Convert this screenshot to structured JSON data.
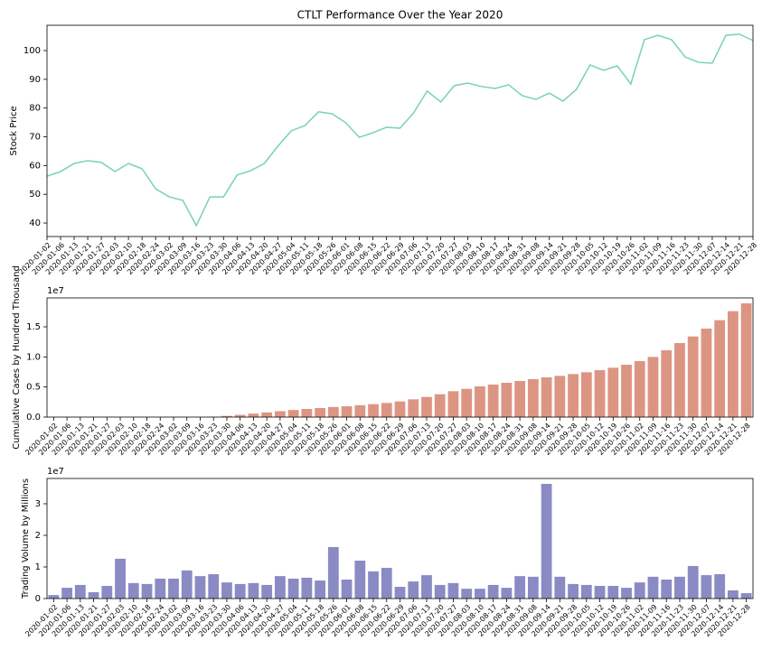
{
  "chart_data": [
    {
      "type": "line",
      "title": "CTLT Performance Over the Year 2020",
      "y_label": "Stock Price",
      "categories": [
        "2020-01-02",
        "2020-01-06",
        "2020-01-13",
        "2020-01-21",
        "2020-01-27",
        "2020-02-03",
        "2020-02-10",
        "2020-02-18",
        "2020-02-24",
        "2020-03-02",
        "2020-03-09",
        "2020-03-16",
        "2020-03-23",
        "2020-03-30",
        "2020-04-06",
        "2020-04-13",
        "2020-04-20",
        "2020-04-27",
        "2020-05-04",
        "2020-05-11",
        "2020-05-18",
        "2020-05-26",
        "2020-06-01",
        "2020-06-08",
        "2020-06-15",
        "2020-06-22",
        "2020-06-29",
        "2020-07-06",
        "2020-07-13",
        "2020-07-20",
        "2020-07-27",
        "2020-08-03",
        "2020-08-10",
        "2020-08-17",
        "2020-08-24",
        "2020-08-31",
        "2020-09-08",
        "2020-09-14",
        "2020-09-21",
        "2020-09-28",
        "2020-10-05",
        "2020-10-12",
        "2020-10-19",
        "2020-10-26",
        "2020-11-02",
        "2020-11-09",
        "2020-11-16",
        "2020-11-23",
        "2020-11-30",
        "2020-12-07",
        "2020-12-14",
        "2020-12-21",
        "2020-12-28"
      ],
      "values": [
        56.3,
        57.9,
        60.7,
        61.7,
        61.1,
        57.9,
        60.7,
        58.9,
        51.9,
        49.1,
        47.9,
        39.1,
        49.1,
        49.1,
        56.7,
        58.2,
        60.7,
        66.7,
        72.1,
        73.9,
        78.7,
        78,
        74.9,
        69.8,
        71.4,
        73.3,
        73,
        78.3,
        85.9,
        82.1,
        87.8,
        88.7,
        87.5,
        86.8,
        88.1,
        84.3,
        83,
        85.2,
        82.4,
        86.5,
        95,
        93.1,
        94.7,
        88.4,
        103.8,
        105.3,
        103.8,
        97.8,
        95.9,
        95.6,
        105.3,
        105.7,
        103.5
      ],
      "color": "#78d2b4",
      "ylim": [
        35.3,
        108.8
      ],
      "yticks": [
        40,
        50,
        60,
        70,
        80,
        90,
        100
      ]
    },
    {
      "type": "bar",
      "y_label": "Cumulative Cases by Hundred Thousand",
      "y_offset_label": "1e7",
      "categories": [
        "2020-01-02",
        "2020-01-06",
        "2020-01-13",
        "2020-01-21",
        "2020-01-27",
        "2020-02-03",
        "2020-02-10",
        "2020-02-18",
        "2020-02-24",
        "2020-03-02",
        "2020-03-09",
        "2020-03-16",
        "2020-03-23",
        "2020-03-30",
        "2020-04-06",
        "2020-04-13",
        "2020-04-20",
        "2020-04-27",
        "2020-05-04",
        "2020-05-11",
        "2020-05-18",
        "2020-05-26",
        "2020-06-01",
        "2020-06-08",
        "2020-06-15",
        "2020-06-22",
        "2020-06-29",
        "2020-07-06",
        "2020-07-13",
        "2020-07-20",
        "2020-07-27",
        "2020-08-03",
        "2020-08-10",
        "2020-08-17",
        "2020-08-24",
        "2020-08-31",
        "2020-09-08",
        "2020-09-14",
        "2020-09-21",
        "2020-09-28",
        "2020-10-05",
        "2020-10-12",
        "2020-10-19",
        "2020-10-26",
        "2020-11-02",
        "2020-11-09",
        "2020-11-16",
        "2020-11-23",
        "2020-11-30",
        "2020-12-07",
        "2020-12-14",
        "2020-12-21",
        "2020-12-28"
      ],
      "values": [
        0,
        0,
        0,
        0,
        0,
        0,
        0,
        0,
        0,
        100,
        500,
        3500,
        44000,
        200000,
        370000,
        580000,
        780000,
        980000,
        1180000,
        1350000,
        1500000,
        1680000,
        1800000,
        1970000,
        2150000,
        2350000,
        2600000,
        2950000,
        3350000,
        3800000,
        4300000,
        4700000,
        5100000,
        5400000,
        5700000,
        6000000,
        6300000,
        6600000,
        6850000,
        7150000,
        7450000,
        7800000,
        8200000,
        8700000,
        9300000,
        10000000,
        11100000,
        12300000,
        13400000,
        14700000,
        16100000,
        17600000,
        18900000
      ],
      "color": "#dd9583",
      "ylim": [
        0,
        19800000
      ],
      "yticks": [
        {
          "value": 0,
          "label": "0.0"
        },
        {
          "value": 5000000,
          "label": "0.5"
        },
        {
          "value": 10000000,
          "label": "1.0"
        },
        {
          "value": 15000000,
          "label": "1.5"
        }
      ]
    },
    {
      "type": "bar",
      "y_label": "Trading Volume by Millions",
      "y_offset_label": "1e7",
      "categories": [
        "2020-01-02",
        "2020-01-06",
        "2020-01-13",
        "2020-01-21",
        "2020-01-27",
        "2020-02-03",
        "2020-02-10",
        "2020-02-18",
        "2020-02-24",
        "2020-03-02",
        "2020-03-09",
        "2020-03-16",
        "2020-03-23",
        "2020-03-30",
        "2020-04-06",
        "2020-04-13",
        "2020-04-20",
        "2020-04-27",
        "2020-05-04",
        "2020-05-11",
        "2020-05-18",
        "2020-05-26",
        "2020-06-01",
        "2020-06-08",
        "2020-06-15",
        "2020-06-22",
        "2020-06-29",
        "2020-07-06",
        "2020-07-13",
        "2020-07-20",
        "2020-07-27",
        "2020-08-03",
        "2020-08-10",
        "2020-08-17",
        "2020-08-24",
        "2020-08-31",
        "2020-09-08",
        "2020-09-14",
        "2020-09-21",
        "2020-09-28",
        "2020-10-05",
        "2020-10-12",
        "2020-10-19",
        "2020-10-26",
        "2020-11-02",
        "2020-11-09",
        "2020-11-16",
        "2020-11-23",
        "2020-11-30",
        "2020-12-07",
        "2020-12-14",
        "2020-12-21",
        "2020-12-28"
      ],
      "values": [
        1100000,
        3400000,
        4300000,
        2000000,
        4000000,
        12600000,
        4900000,
        4600000,
        6300000,
        6300000,
        8900000,
        7100000,
        7700000,
        5100000,
        4600000,
        4900000,
        4300000,
        7100000,
        6300000,
        6600000,
        5700000,
        16300000,
        6000000,
        12000000,
        8600000,
        9700000,
        3700000,
        5400000,
        7400000,
        4300000,
        4900000,
        3100000,
        3100000,
        4300000,
        3400000,
        7100000,
        6900000,
        36300000,
        6900000,
        4600000,
        4300000,
        4000000,
        4000000,
        3400000,
        5100000,
        6900000,
        6000000,
        6900000,
        10300000,
        7400000,
        7700000,
        2600000,
        1700000
      ],
      "color": "#8a8ac4",
      "ylim": [
        0,
        38000000
      ],
      "yticks": [
        0,
        {
          "value": 10000000,
          "label": "1"
        },
        {
          "value": 20000000,
          "label": "2"
        },
        {
          "value": 30000000,
          "label": "3"
        }
      ]
    }
  ]
}
